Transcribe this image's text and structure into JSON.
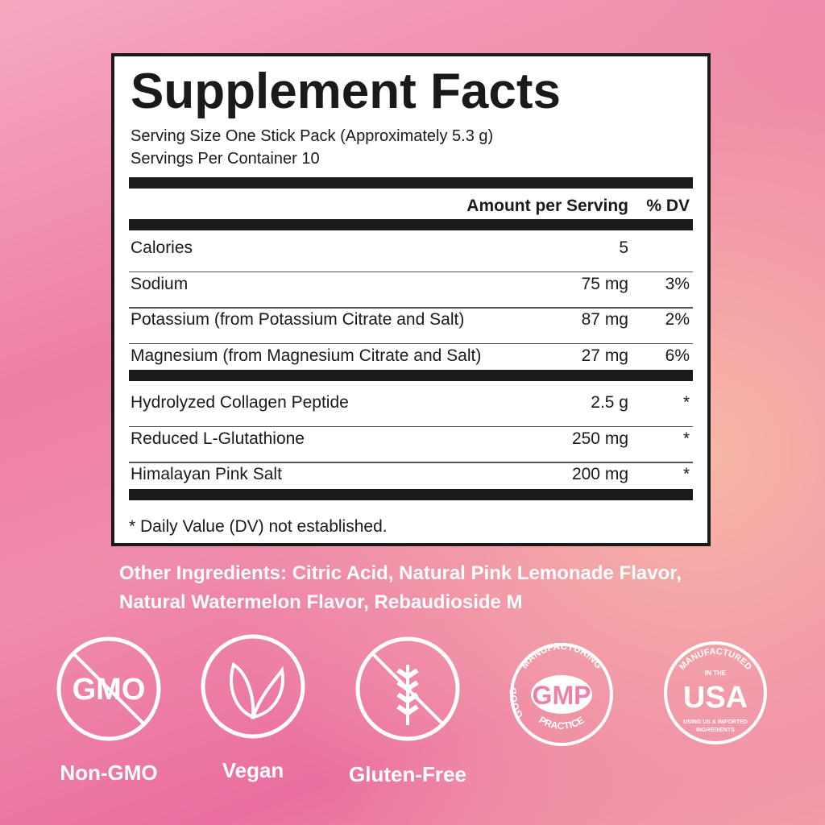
{
  "panel": {
    "title": "Supplement Facts",
    "serving_size": "Serving Size One Stick Pack (Approximately 5.3 g)",
    "servings_per_container": "Servings Per Container 10",
    "header": {
      "amount": "Amount per Serving",
      "dv": "% DV"
    },
    "groups": [
      [
        {
          "name": "Calories",
          "amount": "5"
        },
        {
          "name": "Sodium",
          "amount": "75 mg",
          "dv": "3%"
        },
        {
          "name": "Potassium (from Potassium Citrate and Salt)",
          "amount": "87 mg",
          "dv": "2%"
        },
        {
          "name": "Magnesium (from Magnesium Citrate and Salt)",
          "amount": "27 mg",
          "dv": "6%"
        }
      ],
      [
        {
          "name": "Hydrolyzed Collagen Peptide",
          "amount": "2.5 g",
          "dv": "*"
        },
        {
          "name": "Reduced L-Glutathione",
          "amount": "250 mg",
          "dv": "*"
        },
        {
          "name": "Himalayan Pink Salt",
          "amount": "200 mg",
          "dv": "*"
        }
      ]
    ],
    "footnote": "* Daily Value (DV) not established."
  },
  "other_ingredients": [
    "Other Ingredients: Citric Acid, Natural Pink Lemonade Flavor,",
    "Natural Watermelon Flavor, Rebaudioside M"
  ],
  "badges": {
    "non_gmo": {
      "icon_text": "GMO",
      "label": "Non-GMO"
    },
    "vegan": {
      "label": "Vegan"
    },
    "gluten_free": {
      "label": "Gluten-Free"
    },
    "gmp": {
      "top": "MANUFACTURING",
      "left": "GOOD",
      "bottom": "PRACTICE",
      "center": "GMP"
    },
    "usa": {
      "top": "MANUFACTURED",
      "small": "IN THE",
      "center": "USA",
      "bottom_1": "USING US & IMPORTED",
      "bottom_2": "INGREDIENTS"
    }
  }
}
